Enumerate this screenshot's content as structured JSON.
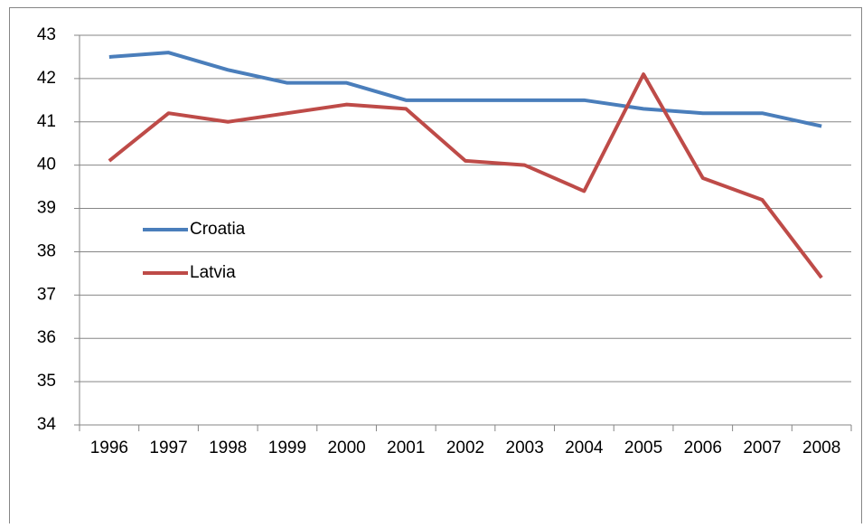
{
  "chart_data": {
    "type": "line",
    "categories": [
      "1996",
      "1997",
      "1998",
      "1999",
      "2000",
      "2001",
      "2002",
      "2003",
      "2004",
      "2005",
      "2006",
      "2007",
      "2008"
    ],
    "series": [
      {
        "name": "Croatia",
        "color": "#4a7ebb",
        "values": [
          42.5,
          42.6,
          42.2,
          41.9,
          41.9,
          41.5,
          41.5,
          41.5,
          41.5,
          41.3,
          41.2,
          41.2,
          40.9
        ]
      },
      {
        "name": "Latvia",
        "color": "#be4b48",
        "values": [
          40.1,
          41.2,
          41.0,
          41.2,
          41.4,
          41.3,
          40.1,
          40.0,
          39.4,
          42.1,
          39.7,
          39.2,
          37.4
        ]
      }
    ],
    "ylim": [
      34,
      43
    ],
    "yticks": [
      34,
      35,
      36,
      37,
      38,
      39,
      40,
      41,
      42,
      43
    ],
    "grid": true,
    "legend": "left"
  }
}
